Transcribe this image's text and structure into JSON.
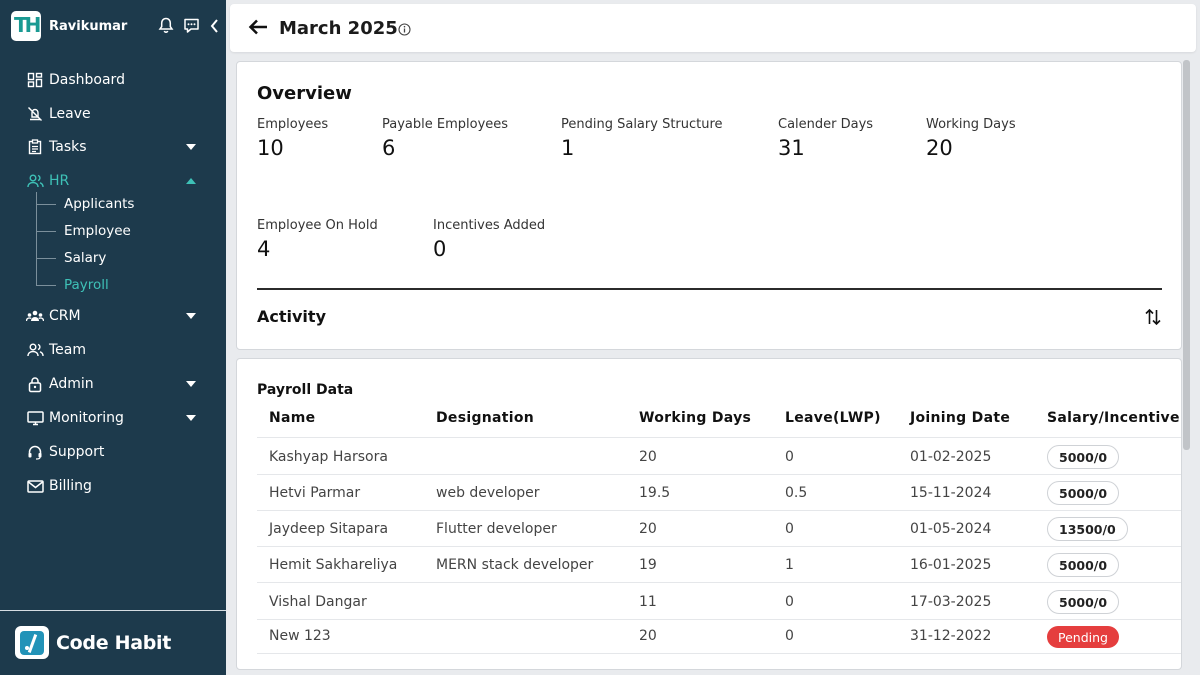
{
  "sidebar": {
    "user_name": "Ravikumar",
    "logo_letters": "TH",
    "icons": [
      "bell-icon",
      "chat-icon",
      "chevron-left-icon"
    ],
    "nav": [
      {
        "label": "Dashboard",
        "icon": "grid-icon"
      },
      {
        "label": "Leave",
        "icon": "leave-icon"
      },
      {
        "label": "Tasks",
        "icon": "clipboard-icon"
      },
      {
        "label": "HR",
        "icon": "people-icon"
      },
      {
        "label": "CRM",
        "icon": "crm-icon"
      },
      {
        "label": "Team",
        "icon": "team-icon"
      },
      {
        "label": "Admin",
        "icon": "lock-icon"
      },
      {
        "label": "Monitoring",
        "icon": "monitor-icon"
      },
      {
        "label": "Support",
        "icon": "headset-icon"
      },
      {
        "label": "Billing",
        "icon": "mail-icon"
      }
    ],
    "hr_sub": [
      "Applicants",
      "Employee",
      "Salary",
      "Payroll"
    ],
    "brand": "Code Habit",
    "accent": "#3ec1b7",
    "bg": "#1d3a4c"
  },
  "header": {
    "title": "March 2025"
  },
  "overview": {
    "title": "Overview",
    "stats": [
      {
        "label": "Employees",
        "value": "10"
      },
      {
        "label": "Payable Employees",
        "value": "6"
      },
      {
        "label": "Pending Salary Structure",
        "value": "1"
      },
      {
        "label": "Calender Days",
        "value": "31"
      },
      {
        "label": "Working Days",
        "value": "20"
      },
      {
        "label": "Employee On Hold",
        "value": "4"
      },
      {
        "label": "Incentives Added",
        "value": "0"
      }
    ],
    "activity_title": "Activity"
  },
  "payroll": {
    "title": "Payroll Data",
    "columns": [
      "Name",
      "Designation",
      "Working Days",
      "Leave(LWP)",
      "Joining Date",
      "Salary/Incentive"
    ],
    "rows": [
      {
        "name": "Kashyap Harsora",
        "designation": "",
        "working_days": "20",
        "leave": "0",
        "joining": "01-02-2025",
        "salary": "5000/0"
      },
      {
        "name": "Hetvi Parmar",
        "designation": "web developer",
        "working_days": "19.5",
        "leave": "0.5",
        "joining": "15-11-2024",
        "salary": "5000/0"
      },
      {
        "name": "Jaydeep Sitapara",
        "designation": "Flutter developer",
        "working_days": "20",
        "leave": "0",
        "joining": "01-05-2024",
        "salary": "13500/0"
      },
      {
        "name": "Hemit Sakhareliya",
        "designation": "MERN stack developer",
        "working_days": "19",
        "leave": "1",
        "joining": "16-01-2025",
        "salary": "5000/0"
      },
      {
        "name": "Vishal Dangar",
        "designation": "",
        "working_days": "11",
        "leave": "0",
        "joining": "17-03-2025",
        "salary": "5000/0"
      },
      {
        "name": "New 123",
        "designation": "",
        "working_days": "20",
        "leave": "0",
        "joining": "31-12-2022",
        "salary": "Pending",
        "status_color": "#e53e3e"
      }
    ]
  }
}
